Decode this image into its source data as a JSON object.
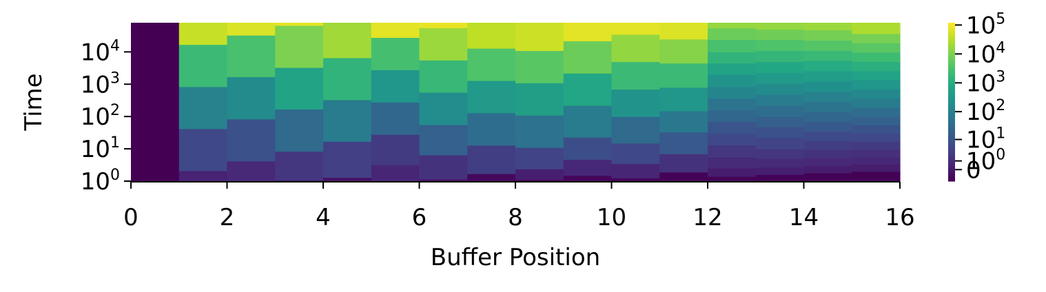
{
  "chart_data": {
    "type": "heatmap",
    "title": "",
    "xlabel": "Buffer Position",
    "ylabel": "Time",
    "xlim": [
      0,
      16
    ],
    "x_ticks": [
      {
        "value": 0,
        "label": "0"
      },
      {
        "value": 2,
        "label": "2"
      },
      {
        "value": 4,
        "label": "4"
      },
      {
        "value": 6,
        "label": "6"
      },
      {
        "value": 8,
        "label": "8"
      },
      {
        "value": 10,
        "label": "10"
      },
      {
        "value": 12,
        "label": "12"
      },
      {
        "value": 14,
        "label": "14"
      },
      {
        "value": 16,
        "label": "16"
      }
    ],
    "y_scale": "log",
    "y_ticks": [
      {
        "value": 1,
        "base": "10",
        "exp": "0"
      },
      {
        "value": 10,
        "base": "10",
        "exp": "1"
      },
      {
        "value": 100,
        "base": "10",
        "exp": "2"
      },
      {
        "value": 1000,
        "base": "10",
        "exp": "3"
      },
      {
        "value": 10000,
        "base": "10",
        "exp": "4"
      }
    ],
    "ylim": [
      1,
      80000
    ],
    "colormap": "viridis",
    "colorbar": {
      "scale": "symlog",
      "range": [
        -1.5,
        120000
      ],
      "ticks": [
        {
          "value": 0,
          "label": "0"
        },
        {
          "value": 1,
          "base": "10",
          "exp": "0"
        },
        {
          "value": 10,
          "base": "10",
          "exp": "1"
        },
        {
          "value": 100,
          "base": "10",
          "exp": "2"
        },
        {
          "value": 1000,
          "base": "10",
          "exp": "3"
        },
        {
          "value": 10000,
          "base": "10",
          "exp": "4"
        },
        {
          "value": 100000,
          "base": "10",
          "exp": "5"
        }
      ]
    },
    "columns": [
      {
        "x": 0,
        "edges": [
          1,
          80000
        ],
        "values": [
          -1.5
        ]
      },
      {
        "x": 1,
        "edges": [
          1,
          2.1,
          42,
          840,
          17000,
          80000
        ],
        "values": [
          0.3,
          5,
          100,
          2000,
          40000
        ]
      },
      {
        "x": 2,
        "edges": [
          1,
          4.2,
          84,
          1700,
          33000,
          80000
        ],
        "values": [
          0.7,
          8,
          160,
          3000,
          60000
        ]
      },
      {
        "x": 3,
        "edges": [
          1,
          1.07,
          8.4,
          170,
          3300,
          66000,
          80000
        ],
        "values": [
          -0.8,
          2,
          30,
          600,
          10000,
          70000
        ]
      },
      {
        "x": 4,
        "edges": [
          1,
          1.3,
          17,
          330,
          6600,
          80000
        ],
        "values": [
          -0.4,
          3.5,
          70,
          1400,
          20000
        ]
      },
      {
        "x": 5,
        "edges": [
          1,
          3.2,
          28,
          280,
          2800,
          28000,
          80000
        ],
        "values": [
          0.5,
          2.5,
          25,
          280,
          2800,
          70000
        ]
      },
      {
        "x": 6,
        "edges": [
          1,
          1.15,
          6.5,
          56,
          560,
          5600,
          56000,
          80000
        ],
        "values": [
          -0.7,
          1.5,
          18,
          180,
          1800,
          18000,
          80000
        ]
      },
      {
        "x": 7,
        "edges": [
          1,
          1.7,
          13,
          130,
          1300,
          13000,
          80000
        ],
        "values": [
          -0.9,
          3,
          35,
          350,
          3500,
          35000
        ]
      },
      {
        "x": 8,
        "edges": [
          1,
          1.12,
          2.4,
          11,
          110,
          1100,
          11000,
          80000
        ],
        "values": [
          -1.2,
          0.2,
          4,
          45,
          450,
          4500,
          45000
        ]
      },
      {
        "x": 9,
        "edges": [
          1,
          1.5,
          4.7,
          23,
          220,
          2200,
          22000,
          80000
        ],
        "values": [
          -1.1,
          0.6,
          7,
          70,
          700,
          7000,
          70000
        ]
      },
      {
        "x": 10,
        "edges": [
          1,
          1.25,
          3.5,
          15,
          100,
          700,
          5000,
          35000,
          80000
        ],
        "values": [
          -1.3,
          0.5,
          5,
          30,
          250,
          2000,
          15000,
          70000
        ]
      },
      {
        "x": 11,
        "edges": [
          1,
          1.9,
          7,
          33,
          150,
          800,
          4500,
          25000,
          80000
        ],
        "values": [
          -1.3,
          1.5,
          12,
          60,
          300,
          2000,
          12000,
          60000
        ]
      },
      {
        "x": 12,
        "edges": [
          1,
          1.4,
          2.5,
          5.5,
          13,
          30,
          70,
          160,
          370,
          850,
          2000,
          4500,
          10000,
          24000,
          55000,
          80000
        ],
        "values": [
          -1.2,
          0.1,
          0.8,
          2,
          5,
          10,
          25,
          50,
          120,
          250,
          600,
          1400,
          3000,
          7000,
          16000
        ]
      },
      {
        "x": 13,
        "edges": [
          1,
          1.6,
          2.7,
          5,
          10,
          22,
          48,
          100,
          220,
          480,
          1050,
          2300,
          5000,
          11000,
          24000,
          50000,
          80000
        ],
        "values": [
          -1.3,
          0.2,
          0.8,
          2,
          4,
          8,
          17,
          35,
          75,
          160,
          350,
          750,
          1600,
          3500,
          7500,
          16000
        ]
      },
      {
        "x": 14,
        "edges": [
          1,
          1.8,
          3,
          5.3,
          9.5,
          18,
          35,
          70,
          140,
          290,
          600,
          1250,
          2600,
          5400,
          11000,
          23000,
          48000,
          80000
        ],
        "values": [
          -1.35,
          0.1,
          0.7,
          1.5,
          3,
          6,
          12,
          25,
          50,
          100,
          210,
          430,
          900,
          1900,
          4000,
          8500,
          18000
        ]
      },
      {
        "x": 15,
        "edges": [
          1,
          2,
          3.3,
          5.5,
          9.5,
          17,
          30,
          55,
          100,
          190,
          360,
          700,
          1350,
          2600,
          5000,
          9800,
          19000,
          37000,
          80000
        ],
        "values": [
          -1.4,
          0.1,
          0.6,
          1.2,
          2.5,
          5,
          9,
          18,
          35,
          70,
          140,
          280,
          550,
          1100,
          2200,
          4500,
          9000,
          25000
        ]
      }
    ]
  }
}
